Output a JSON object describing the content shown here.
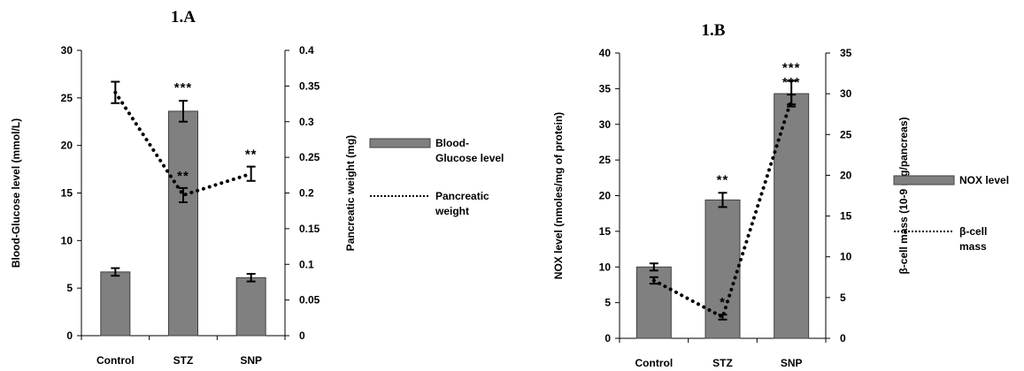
{
  "chart_data": [
    {
      "type": "bar",
      "title": "1.A",
      "categories": [
        "Control",
        "STZ",
        "SNP"
      ],
      "ylabel": "Blood-Glucose level (mmol/L)",
      "y2label": "Pancreatic weight (mg)",
      "ylim": [
        0,
        30
      ],
      "y2lim": [
        0,
        0.4
      ],
      "yticks": [
        "0",
        "5",
        "10",
        "15",
        "20",
        "25",
        "30"
      ],
      "y2ticks": [
        "0",
        "0.05",
        "0.1",
        "0.15",
        "0.2",
        "0.25",
        "0.3",
        "0.35",
        "0.4"
      ],
      "legend_position": "right",
      "bar_color": "#808080",
      "series": [
        {
          "name": "Blood-Glucose level",
          "kind": "bar",
          "axis": "left",
          "values": [
            6.7,
            23.6,
            6.1
          ],
          "errors": [
            0.4,
            1.1,
            0.4
          ],
          "annotations": [
            "",
            "***",
            ""
          ]
        },
        {
          "name": "Pancreatic weight",
          "kind": "dotted-line",
          "axis": "right",
          "values": [
            0.341,
            0.197,
            0.227
          ],
          "errors": [
            0.015,
            0.01,
            0.01
          ],
          "annotations": [
            "",
            "**",
            "**"
          ]
        }
      ]
    },
    {
      "type": "bar",
      "title": "1.B",
      "categories": [
        "Control",
        "STZ",
        "SNP"
      ],
      "ylabel": "NOX level (nmoles/mg of protein)",
      "y2label": "β-cell mass (10-9 mg/pancreas)",
      "ylim": [
        0,
        40
      ],
      "y2lim": [
        0,
        35
      ],
      "yticks": [
        "0",
        "5",
        "10",
        "15",
        "20",
        "25",
        "30",
        "35",
        "40"
      ],
      "y2ticks": [
        "0",
        "5",
        "10",
        "15",
        "20",
        "25",
        "30",
        "35"
      ],
      "legend_position": "right",
      "bar_color": "#808080",
      "series": [
        {
          "name": "NOX level",
          "kind": "bar",
          "axis": "left",
          "values": [
            10.0,
            19.4,
            34.3
          ],
          "errors": [
            0.5,
            1.0,
            1.8
          ],
          "annotations": [
            "",
            "**",
            "***"
          ]
        },
        {
          "name": "β-cell mass",
          "kind": "dotted-line",
          "axis": "right",
          "values": [
            7.1,
            2.6,
            29.3
          ],
          "errors": [
            0.4,
            0.3,
            0.6
          ],
          "annotations": [
            "",
            "*",
            "***"
          ]
        }
      ]
    }
  ]
}
